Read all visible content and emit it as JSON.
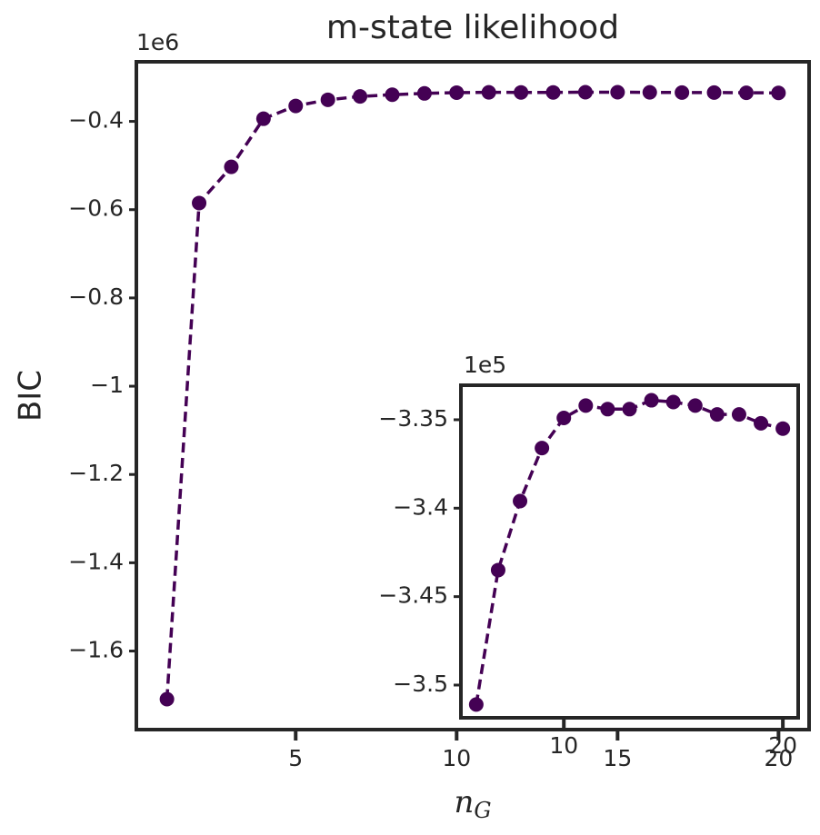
{
  "chart_data": [
    {
      "type": "line",
      "title": "m-state likelihood",
      "xlabel": "n_G",
      "ylabel": "BIC",
      "offset_text": "1e6",
      "x": [
        1,
        2,
        3,
        4,
        5,
        6,
        7,
        8,
        9,
        10,
        11,
        12,
        13,
        14,
        15,
        16,
        17,
        18,
        19,
        20
      ],
      "series": [
        {
          "color": "#440154",
          "values": [
            -1.709,
            -0.585,
            -0.503,
            -0.394,
            -0.365,
            -0.3511,
            -0.3435,
            -0.3396,
            -0.3366,
            -0.3349,
            -0.3342,
            -0.3344,
            -0.3344,
            -0.3339,
            -0.334,
            -0.3342,
            -0.3347,
            -0.3347,
            -0.3352,
            -0.3355
          ]
        }
      ],
      "xlim": [
        0.05,
        20.95
      ],
      "ylim": [
        -1.778,
        -0.265
      ],
      "xticks": [
        5,
        10,
        15,
        20
      ],
      "yticks": [
        -0.4,
        -0.6,
        -0.8,
        -1.0,
        -1.2,
        -1.4,
        -1.6
      ]
    },
    {
      "type": "line",
      "offset_text": "1e5",
      "x": [
        6,
        7,
        8,
        9,
        10,
        11,
        12,
        13,
        14,
        15,
        16,
        17,
        18,
        19,
        20
      ],
      "series": [
        {
          "color": "#440154",
          "values": [
            -3.511,
            -3.435,
            -3.396,
            -3.366,
            -3.349,
            -3.342,
            -3.344,
            -3.344,
            -3.339,
            -3.34,
            -3.342,
            -3.347,
            -3.347,
            -3.352,
            -3.355
          ]
        }
      ],
      "xlim": [
        5.3,
        20.7
      ],
      "ylim": [
        -3.5185,
        -3.3305
      ],
      "xticks": [
        10,
        20
      ],
      "yticks": [
        -3.35,
        -3.4,
        -3.45,
        -3.5
      ]
    }
  ]
}
